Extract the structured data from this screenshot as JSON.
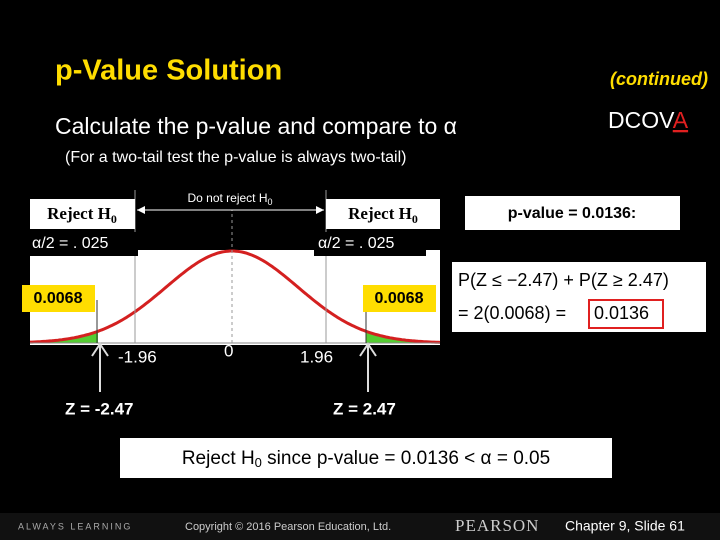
{
  "header": {
    "title": "p-Value Solution",
    "continued": "(continued)",
    "subtitle": "Calculate the p-value and compare to α",
    "dcova": {
      "main": "DCOV",
      "highlight": "A"
    },
    "note": "(For a two-tail test the p-value is always two-tail)"
  },
  "diagram": {
    "reject_left": {
      "text": "Reject H",
      "sub": "0"
    },
    "do_not_reject": {
      "text": "Do not reject H",
      "sub": "0"
    },
    "reject_right": {
      "text": "Reject H",
      "sub": "0"
    },
    "alpha_left": "α/2 = . 025",
    "alpha_right": "α/2 = . 025",
    "tail_left": "0.0068",
    "tail_right": "0.0068",
    "crit_left": "-1.96",
    "center": "0",
    "crit_right": "1.96",
    "z_left": "Z = -2.47",
    "z_right": "Z = 2.47"
  },
  "result": {
    "p_value": "p-value = 0.0136:",
    "formula_line1": "P(Z ≤ −2.47) + P(Z ≥ 2.47)",
    "formula_line2": "= 2(0.0068) = ",
    "formula_answer": "0.0136",
    "conclusion": {
      "text": "Reject H",
      "sub": "0",
      "rest": " since p-value = 0.0136 < α = 0.05"
    }
  },
  "footer": {
    "left": "ALWAYS LEARNING",
    "copyright": "Copyright © 2016 Pearson Education, Ltd.",
    "brand": "PEARSON",
    "slide": "Chapter 9, Slide 61"
  }
}
